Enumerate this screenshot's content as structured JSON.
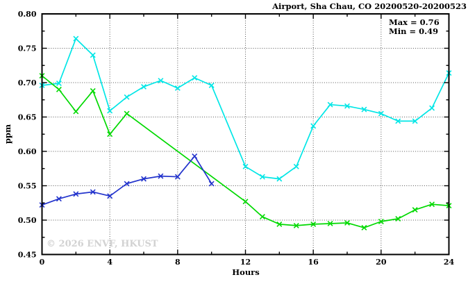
{
  "chart_data": {
    "type": "line",
    "title": "Airport, Sha Chau, CO 20200520-20200523",
    "xlabel": "Hours",
    "ylabel": "ppm",
    "xlim": [
      0,
      24
    ],
    "ylim": [
      0.45,
      0.8
    ],
    "x_major_ticks": [
      0,
      4,
      8,
      12,
      16,
      20,
      24
    ],
    "x_minor_ticks": [
      2,
      6,
      10,
      14,
      18,
      22
    ],
    "x_tick_labels": [
      "0",
      "4",
      "8",
      "12",
      "16",
      "20",
      "24"
    ],
    "y_major_ticks": [
      0.45,
      0.5,
      0.55,
      0.6,
      0.65,
      0.7,
      0.75,
      0.8
    ],
    "y_minor_ticks": [
      0.475,
      0.525,
      0.575,
      0.625,
      0.675,
      0.725,
      0.775
    ],
    "y_tick_labels": [
      "0.45",
      "0.50",
      "0.55",
      "0.60",
      "0.65",
      "0.70",
      "0.75",
      "0.80"
    ],
    "grid": {
      "show": true,
      "style": "dotted",
      "color": "#555555"
    },
    "annotations": {
      "max": "Max = 0.76",
      "min": "Min = 0.49"
    },
    "watermark": "© 2026 ENVF, HKUST",
    "legend_position": "top-right-inside",
    "series": [
      {
        "id": "cyan",
        "color": "#00e6e6",
        "marker": "x",
        "points": [
          [
            0,
            0.696
          ],
          [
            1,
            0.699
          ],
          [
            2,
            0.764
          ],
          [
            3,
            0.74
          ],
          [
            4,
            0.659
          ],
          [
            5,
            0.679
          ],
          [
            6,
            0.694
          ],
          [
            7,
            0.703
          ],
          [
            8,
            0.692
          ],
          [
            9,
            0.707
          ],
          [
            10,
            0.696
          ],
          [
            12,
            0.578
          ],
          [
            13,
            0.563
          ],
          [
            14,
            0.56
          ],
          [
            15,
            0.578
          ],
          [
            16,
            0.637
          ],
          [
            17,
            0.668
          ],
          [
            18,
            0.666
          ],
          [
            19,
            0.661
          ],
          [
            20,
            0.655
          ],
          [
            21,
            0.644
          ],
          [
            22,
            0.644
          ],
          [
            23,
            0.663
          ],
          [
            24,
            0.714
          ]
        ]
      },
      {
        "id": "green",
        "color": "#00d900",
        "marker": "x",
        "points": [
          [
            0,
            0.71
          ],
          [
            1,
            0.69
          ],
          [
            2,
            0.658
          ],
          [
            3,
            0.688
          ],
          [
            4,
            0.625
          ],
          [
            5,
            0.655
          ],
          [
            12,
            0.527
          ],
          [
            13,
            0.505
          ],
          [
            14,
            0.494
          ],
          [
            15,
            0.492
          ],
          [
            16,
            0.494
          ],
          [
            17,
            0.495
          ],
          [
            18,
            0.496
          ],
          [
            19,
            0.489
          ],
          [
            20,
            0.498
          ],
          [
            21,
            0.502
          ],
          [
            22,
            0.515
          ],
          [
            23,
            0.523
          ],
          [
            24,
            0.521
          ]
        ]
      },
      {
        "id": "blue",
        "color": "#2233cc",
        "marker": "x",
        "points": [
          [
            0,
            0.522
          ],
          [
            1,
            0.531
          ],
          [
            2,
            0.538
          ],
          [
            3,
            0.541
          ],
          [
            4,
            0.535
          ],
          [
            5,
            0.553
          ],
          [
            6,
            0.56
          ],
          [
            7,
            0.564
          ],
          [
            8,
            0.563
          ],
          [
            9,
            0.593
          ],
          [
            10,
            0.553
          ]
        ]
      }
    ]
  }
}
